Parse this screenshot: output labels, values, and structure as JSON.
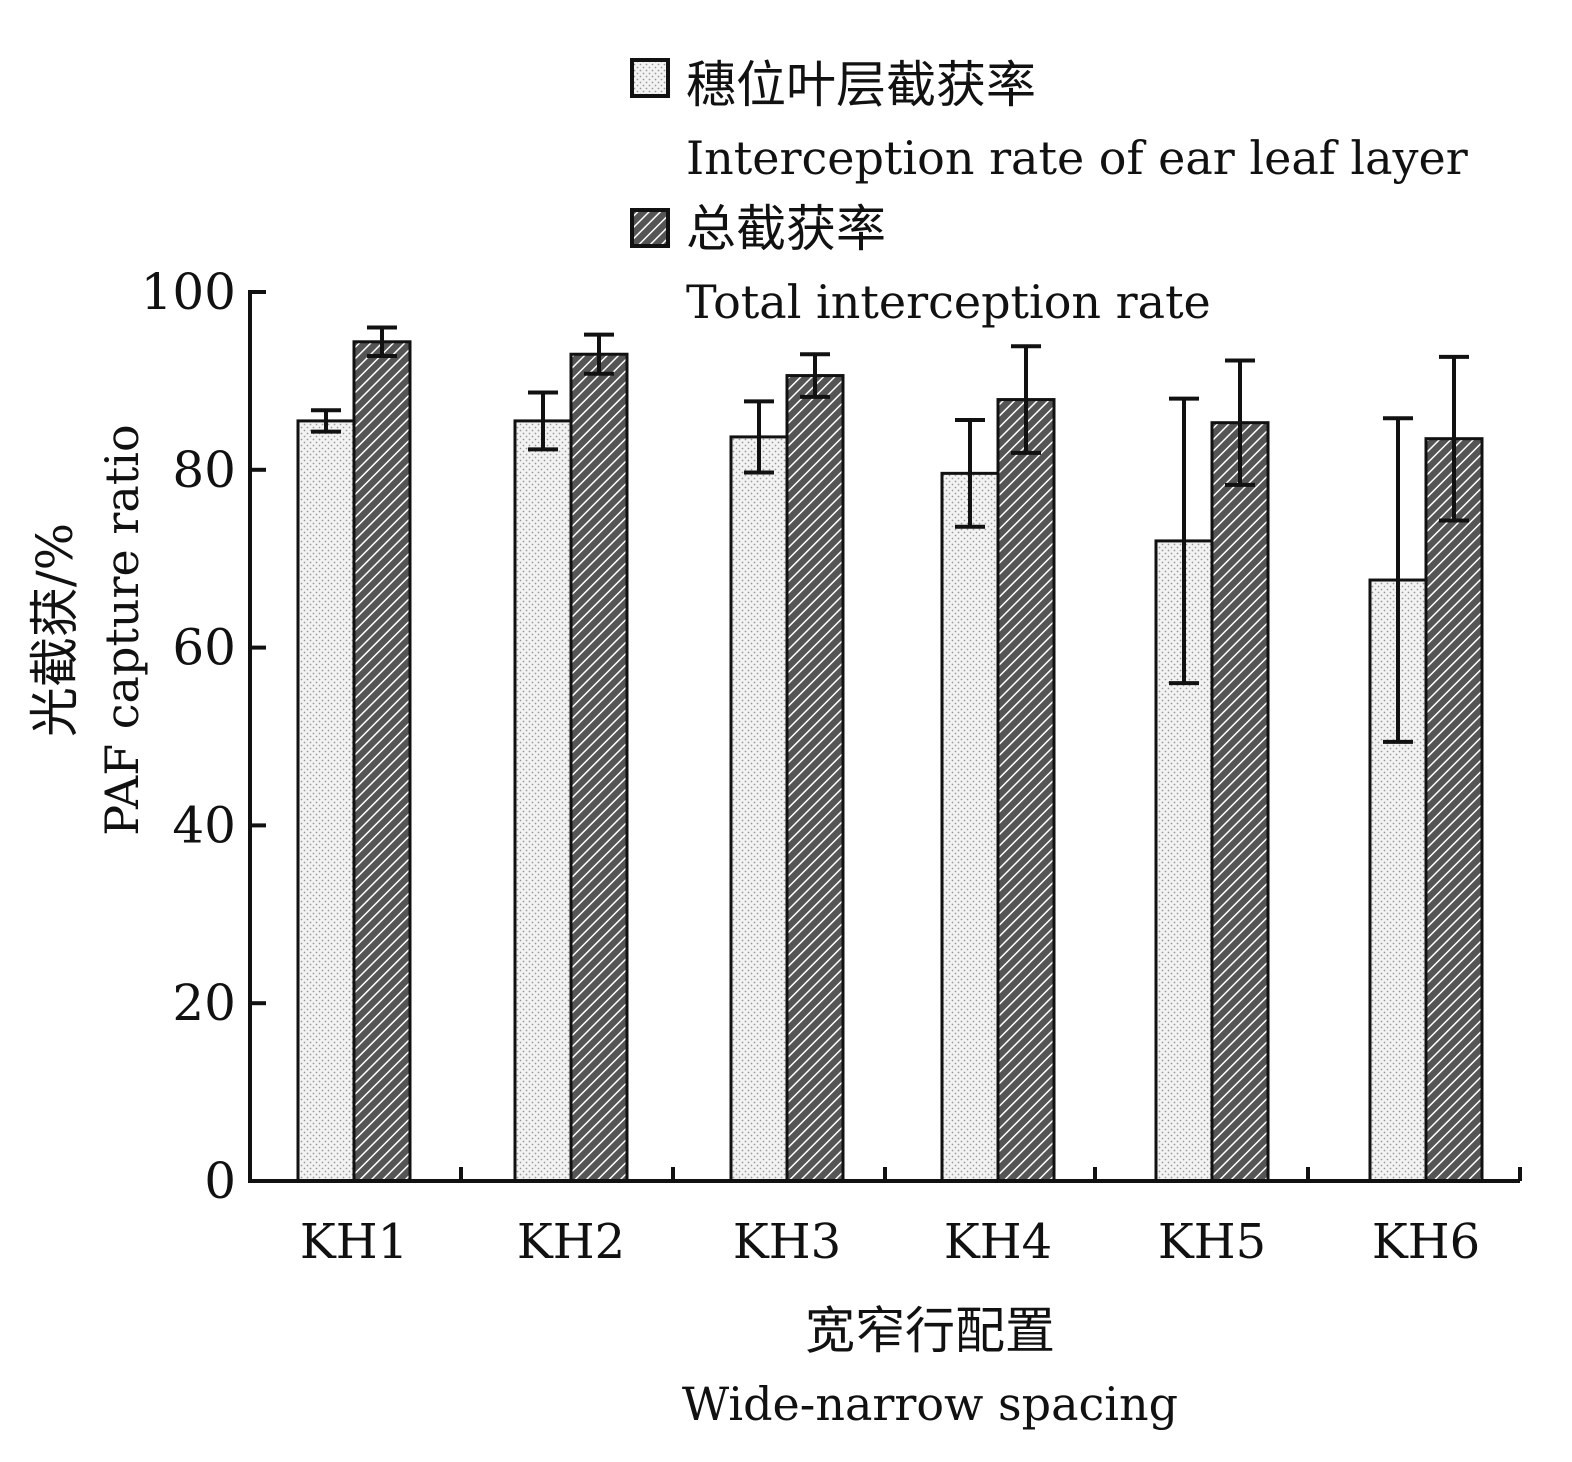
{
  "chart_data": {
    "type": "bar",
    "categories": [
      "KH1",
      "KH2",
      "KH3",
      "KH4",
      "KH5",
      "KH6"
    ],
    "series": [
      {
        "name_zh": "穗位叶层截获率",
        "name_en": "Interception rate of ear leaf layer",
        "pattern": "dotted",
        "values": [
          85.5,
          85.5,
          83.7,
          79.6,
          72.0,
          67.6
        ],
        "error": [
          1.2,
          3.2,
          4.0,
          6.0,
          16.0,
          18.2
        ]
      },
      {
        "name_zh": "总截获率",
        "name_en": "Total interception rate",
        "pattern": "hatched",
        "values": [
          94.4,
          93.0,
          90.6,
          87.9,
          85.3,
          83.5
        ],
        "error": [
          1.6,
          2.2,
          2.4,
          6.0,
          7.0,
          9.2
        ]
      }
    ],
    "ylim": [
      0,
      100
    ],
    "yticks": [
      0,
      20,
      40,
      60,
      80,
      100
    ],
    "ylabel_zh": "光截获/%",
    "ylabel_en": "PAF  capture ratio",
    "xlabel_zh": "宽窄行配置",
    "xlabel_en": "Wide-narrow spacing",
    "legend_position": "top-right"
  },
  "colors": {
    "axis": "#111111",
    "bar_stroke": "#111111",
    "dotted_fill": "#f2f2f2",
    "dot_color": "#9a9a9a",
    "hatched_fill": "#6a6a6a",
    "hatch_line": "#ffffff"
  }
}
